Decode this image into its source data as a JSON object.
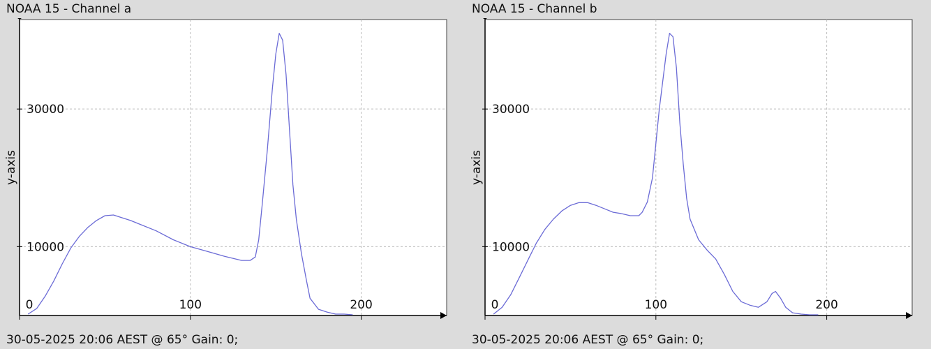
{
  "charts": [
    {
      "title": "NOAA 15 - Channel a",
      "footer": "30-05-2025 20:06 AEST @ 65° Gain: 0;"
    },
    {
      "title": "NOAA 15 - Channel b",
      "footer": "30-05-2025 20:06 AEST @ 65° Gain: 0;"
    }
  ],
  "colors": {
    "line": "#6b6bd6",
    "plot_bg": "#ffffff",
    "page_bg": "#dcdcdc",
    "grid": "#bdbdbd"
  },
  "chart_data": [
    {
      "type": "line",
      "title": "NOAA 15 - Channel a",
      "xlabel": "",
      "ylabel": "y-axis",
      "xlim": [
        0,
        250
      ],
      "ylim": [
        0,
        43000
      ],
      "xticks": [
        0,
        100,
        200
      ],
      "yticks": [
        10000,
        30000
      ],
      "xtick_labels": [
        "0",
        "100",
        "200"
      ],
      "ytick_labels": [
        "10000",
        "30000"
      ],
      "grid": true,
      "series": [
        {
          "x": [
            5,
            10,
            15,
            20,
            25,
            30,
            35,
            40,
            45,
            50,
            55,
            60,
            65,
            70,
            80,
            90,
            100,
            110,
            120,
            130,
            135,
            138,
            140,
            142,
            145,
            148,
            150,
            152,
            154,
            156,
            158,
            160,
            162,
            165,
            168,
            170,
            175,
            180,
            185,
            190,
            195
          ],
          "values": [
            200,
            1000,
            2800,
            5000,
            7500,
            9800,
            11500,
            12800,
            13800,
            14500,
            14600,
            14200,
            13800,
            13300,
            12300,
            11000,
            10000,
            9300,
            8600,
            8000,
            8000,
            8500,
            11000,
            16000,
            24000,
            33000,
            38000,
            41000,
            40000,
            35000,
            27000,
            19000,
            14000,
            9000,
            5000,
            2500,
            900,
            500,
            200,
            200,
            100
          ]
        }
      ]
    },
    {
      "type": "line",
      "title": "NOAA 15 - Channel b",
      "xlabel": "",
      "ylabel": "y-axis",
      "xlim": [
        0,
        250
      ],
      "ylim": [
        0,
        43000
      ],
      "xticks": [
        0,
        100,
        200
      ],
      "yticks": [
        10000,
        30000
      ],
      "xtick_labels": [
        "0",
        "100",
        "200"
      ],
      "ytick_labels": [
        "10000",
        "30000"
      ],
      "grid": true,
      "series": [
        {
          "x": [
            5,
            10,
            15,
            20,
            25,
            30,
            35,
            40,
            45,
            50,
            55,
            60,
            65,
            70,
            75,
            80,
            85,
            90,
            92,
            95,
            98,
            100,
            102,
            104,
            106,
            108,
            110,
            112,
            114,
            116,
            118,
            120,
            125,
            130,
            135,
            140,
            145,
            150,
            155,
            160,
            165,
            168,
            170,
            173,
            176,
            180,
            185,
            190,
            195
          ],
          "values": [
            200,
            1200,
            3000,
            5500,
            8000,
            10500,
            12500,
            14000,
            15200,
            16000,
            16400,
            16400,
            16000,
            15500,
            15000,
            14800,
            14500,
            14500,
            15000,
            16500,
            20000,
            25000,
            30000,
            34000,
            38000,
            41000,
            40500,
            36000,
            28000,
            22000,
            17000,
            14000,
            11000,
            9500,
            8200,
            6000,
            3500,
            2000,
            1500,
            1200,
            2000,
            3200,
            3500,
            2500,
            1200,
            400,
            200,
            100,
            100
          ]
        }
      ]
    }
  ]
}
